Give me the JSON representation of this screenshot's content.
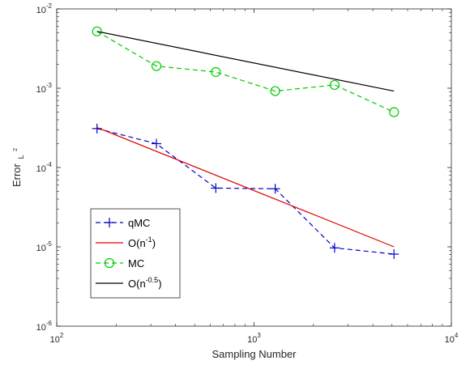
{
  "chart_data": {
    "type": "line",
    "xscale": "log",
    "yscale": "log",
    "xlabel": "Sampling Number",
    "ylabel_main": "Error",
    "ylabel_sub": "L",
    "ylabel_sup": "2",
    "xlim": [
      100,
      10000
    ],
    "ylim": [
      1e-06,
      0.01
    ],
    "grid": false,
    "legend_position": "bottom-left",
    "x_ticks": [
      {
        "value": 100,
        "base": "10",
        "exp": "2"
      },
      {
        "value": 1000,
        "base": "10",
        "exp": "3"
      },
      {
        "value": 10000,
        "base": "10",
        "exp": "4"
      }
    ],
    "y_ticks": [
      {
        "value": 1e-06,
        "base": "10",
        "exp": "-6"
      },
      {
        "value": 1e-05,
        "base": "10",
        "exp": "-5"
      },
      {
        "value": 0.0001,
        "base": "10",
        "exp": "-4"
      },
      {
        "value": 0.001,
        "base": "10",
        "exp": "-3"
      },
      {
        "value": 0.01,
        "base": "10",
        "exp": "-2"
      }
    ],
    "series": [
      {
        "name": "qMC",
        "legend_base": "qMC",
        "legend_sup": "",
        "legend_tail": "",
        "color": "#0000cc",
        "dash": "6,4",
        "marker": "plus",
        "x": [
          160,
          320,
          640,
          1280,
          2560,
          5120
        ],
        "y": [
          0.00031,
          0.0002,
          5.5e-05,
          5.4e-05,
          9.7e-06,
          8.1e-06
        ]
      },
      {
        "name": "O(n^-1)",
        "legend_base": "O(n",
        "legend_sup": "-1",
        "legend_tail": ")",
        "color": "#e00000",
        "dash": "",
        "marker": "none",
        "x": [
          160,
          5120
        ],
        "y": [
          0.00032,
          1e-05
        ]
      },
      {
        "name": "MC",
        "legend_base": "MC",
        "legend_sup": "",
        "legend_tail": "",
        "color": "#00cc00",
        "dash": "6,4",
        "marker": "circle",
        "x": [
          160,
          320,
          640,
          1280,
          2560,
          5120
        ],
        "y": [
          0.0052,
          0.0019,
          0.0016,
          0.00092,
          0.0011,
          0.0005
        ]
      },
      {
        "name": "O(n^-0.5)",
        "legend_base": "O(n",
        "legend_sup": "-0.5",
        "legend_tail": ")",
        "color": "#000000",
        "dash": "",
        "marker": "none",
        "x": [
          160,
          5120
        ],
        "y": [
          0.0052,
          0.00092
        ]
      }
    ]
  }
}
